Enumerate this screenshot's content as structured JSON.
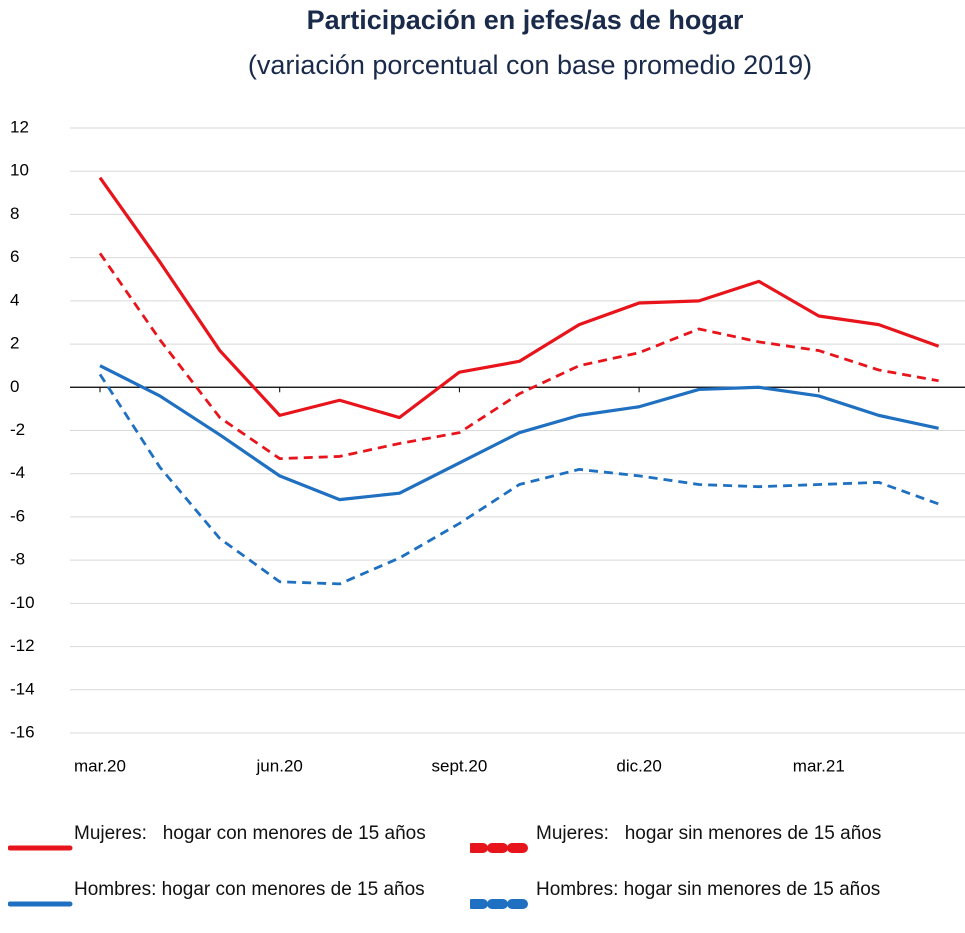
{
  "chart_data": {
    "type": "line",
    "title": "Participación en jefes/as de hogar",
    "subtitle": "(variación porcentual con base promedio 2019)",
    "categories": [
      "mar.20",
      null,
      null,
      "jun.20",
      null,
      null,
      "sept.20",
      null,
      null,
      "dic.20",
      null,
      null,
      "mar.21",
      null,
      null
    ],
    "series": [
      {
        "name": "Mujeres:   hogar con menores de 15 años",
        "color": "#e8141b",
        "dashed": false,
        "values": [
          9.7,
          5.8,
          1.7,
          -1.3,
          -0.6,
          -1.4,
          0.7,
          1.2,
          2.9,
          3.9,
          4.0,
          4.9,
          3.3,
          2.9,
          1.9
        ]
      },
      {
        "name": "Mujeres:   hogar sin menores de 15 años",
        "color": "#e8141b",
        "dashed": true,
        "values": [
          6.2,
          2.2,
          -1.4,
          -3.3,
          -3.2,
          -2.6,
          -2.1,
          -0.3,
          1.0,
          1.6,
          2.7,
          2.1,
          1.7,
          0.8,
          0.3
        ]
      },
      {
        "name": "Hombres: hogar con menores de 15 años",
        "color": "#1f70c1",
        "dashed": false,
        "values": [
          1.0,
          -0.4,
          -2.2,
          -4.1,
          -5.2,
          -4.9,
          -3.5,
          -2.1,
          -1.3,
          -0.9,
          -0.1,
          0.0,
          -0.4,
          -1.3,
          -1.9
        ]
      },
      {
        "name": "Hombres: hogar sin menores de 15 años",
        "color": "#1f70c1",
        "dashed": true,
        "values": [
          0.6,
          -3.7,
          -7.0,
          -9.0,
          -9.1,
          -7.9,
          -6.3,
          -4.5,
          -3.8,
          -4.1,
          -4.5,
          -4.6,
          -4.5,
          -4.4,
          -5.4
        ]
      }
    ],
    "ylim": [
      -16,
      12
    ],
    "yticks": [
      -16,
      -14,
      -12,
      -10,
      -8,
      -6,
      -4,
      -2,
      0,
      2,
      4,
      6,
      8,
      10,
      12
    ],
    "grid": true
  }
}
